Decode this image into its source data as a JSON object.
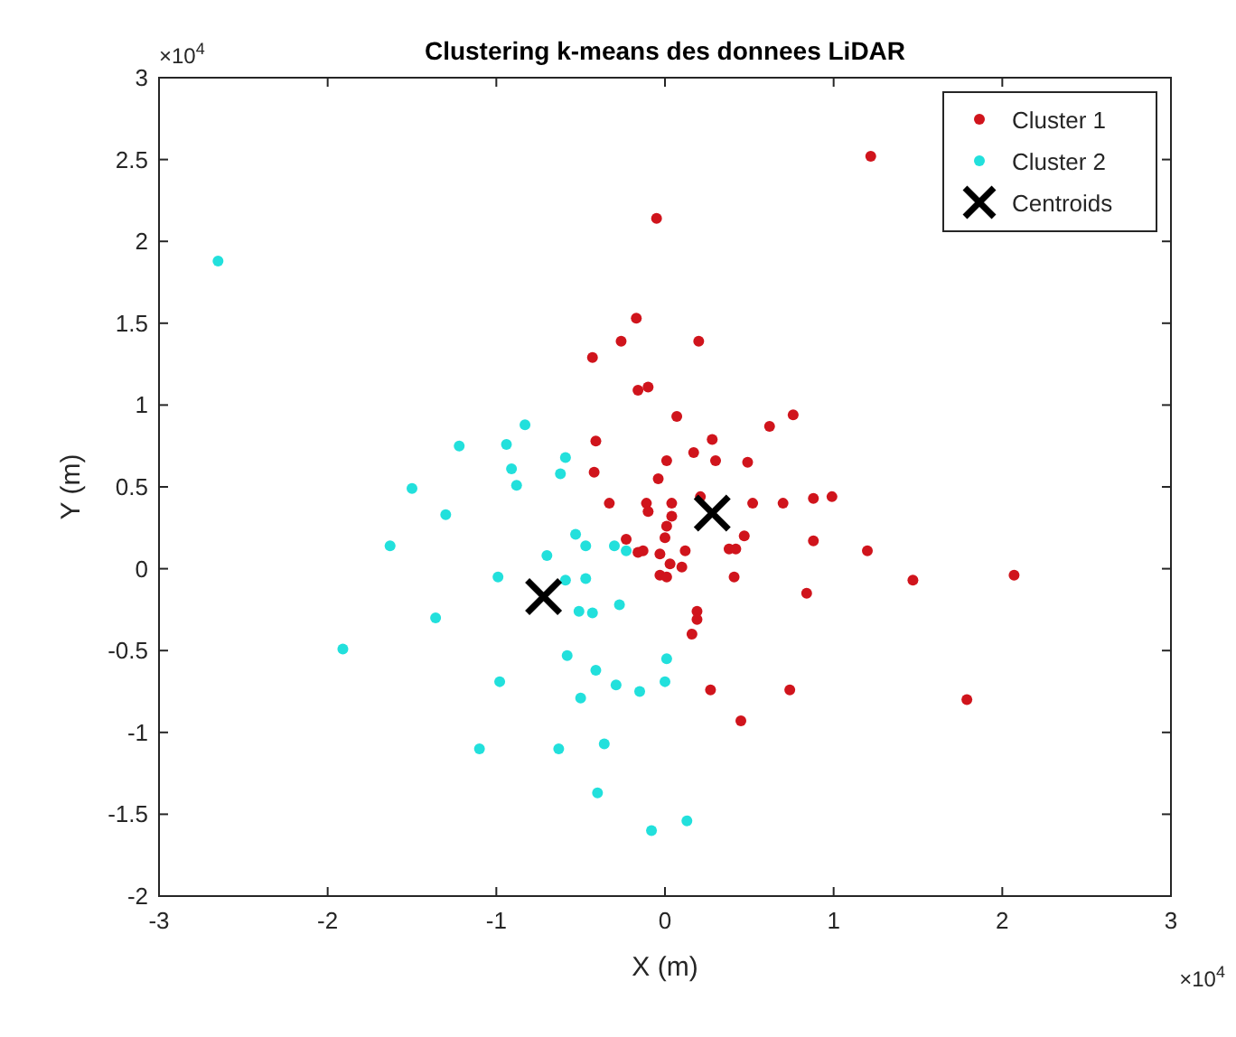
{
  "chart_data": {
    "type": "scatter",
    "title": "Clustering k-means des donnees LiDAR",
    "xlabel": "X (m)",
    "ylabel": "Y (m)",
    "annotations": [
      "×10$^{4}$",
      "×10$^{4}$"
    ],
    "xlim": [
      -3,
      3
    ],
    "ylim": [
      -2,
      3
    ],
    "xticks": [
      -3,
      -2,
      -1,
      0,
      1,
      2,
      3
    ],
    "yticks": [
      -2,
      -1.5,
      -1,
      -0.5,
      0,
      0.5,
      1,
      1.5,
      2,
      2.5,
      3
    ],
    "grid": false,
    "legend": "top right",
    "series": [
      {
        "name": "Cluster 1",
        "color": "#d0141c",
        "marker": "circle",
        "x": [
          1.22,
          -0.05,
          -0.17,
          -0.26,
          0.2,
          -0.43,
          -0.16,
          -0.1,
          0.07,
          0.62,
          0.76,
          -0.41,
          0.17,
          0.28,
          0.01,
          0.3,
          0.49,
          -0.42,
          -0.04,
          -0.33,
          -0.11,
          -0.1,
          0.04,
          0.52,
          0.7,
          0.88,
          0.99,
          0.21,
          0.04,
          0.01,
          0,
          -0.23,
          -0.13,
          -0.16,
          -0.03,
          0.12,
          0.47,
          0.38,
          0.42,
          0.88,
          1.2,
          0.03,
          0.1,
          -0.03,
          0.01,
          0.41,
          1.47,
          2.07,
          0.84,
          0.19,
          0.19,
          0.16,
          0.27,
          0.74,
          0.45,
          1.79
        ],
        "values": [
          2.52,
          2.14,
          1.53,
          1.39,
          1.39,
          1.29,
          1.09,
          1.11,
          0.93,
          0.87,
          0.94,
          0.78,
          0.71,
          0.79,
          0.66,
          0.66,
          0.65,
          0.59,
          0.55,
          0.4,
          0.4,
          0.35,
          0.4,
          0.4,
          0.4,
          0.43,
          0.44,
          0.44,
          0.32,
          0.26,
          0.19,
          0.18,
          0.11,
          0.1,
          0.09,
          0.11,
          0.2,
          0.12,
          0.12,
          0.17,
          0.11,
          0.03,
          0.01,
          -0.04,
          -0.05,
          -0.05,
          -0.07,
          -0.04,
          -0.15,
          -0.26,
          -0.31,
          -0.4,
          -0.74,
          -0.74,
          -0.93,
          -0.8
        ]
      },
      {
        "name": "Cluster 2",
        "color": "#22e0dc",
        "marker": "circle",
        "x": [
          -2.65,
          -0.83,
          -1.22,
          -0.94,
          -0.59,
          -0.91,
          -0.88,
          -0.62,
          -1.5,
          -1.3,
          -1.63,
          -0.53,
          -0.47,
          -0.7,
          -0.3,
          -0.23,
          -0.99,
          -0.59,
          -0.47,
          -1.36,
          -0.51,
          -0.43,
          -0.27,
          -1.91,
          -0.58,
          -0.41,
          0.01,
          -0.98,
          -0.29,
          -0.15,
          0,
          -0.5,
          -1.1,
          -0.63,
          -0.36,
          -0.4,
          -0.08,
          0.13
        ],
        "values": [
          1.88,
          0.88,
          0.75,
          0.76,
          0.68,
          0.61,
          0.51,
          0.58,
          0.49,
          0.33,
          0.14,
          0.21,
          0.14,
          0.08,
          0.14,
          0.11,
          -0.05,
          -0.07,
          -0.06,
          -0.3,
          -0.26,
          -0.27,
          -0.22,
          -0.49,
          -0.53,
          -0.62,
          -0.55,
          -0.69,
          -0.71,
          -0.75,
          -0.69,
          -0.79,
          -1.1,
          -1.1,
          -1.07,
          -1.37,
          -1.6,
          -1.54
        ]
      },
      {
        "name": "Centroids",
        "color": "#000000",
        "marker": "cross",
        "x": [
          -0.72,
          0.28
        ],
        "values": [
          -0.17,
          0.34
        ]
      }
    ]
  }
}
